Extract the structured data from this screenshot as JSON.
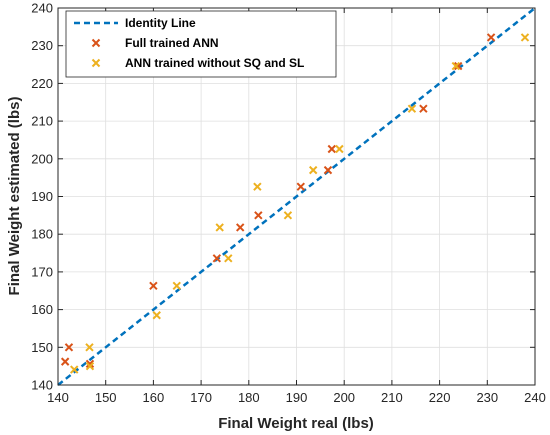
{
  "chart_data": {
    "type": "scatter",
    "xlabel": "Final Weight real (lbs)",
    "ylabel": "Final Weight estimated (lbs)",
    "xlim": [
      140,
      240
    ],
    "ylim": [
      140,
      240
    ],
    "xticks": [
      140,
      150,
      160,
      170,
      180,
      190,
      200,
      210,
      220,
      230,
      240
    ],
    "yticks": [
      140,
      150,
      160,
      170,
      180,
      190,
      200,
      210,
      220,
      230,
      240
    ],
    "grid": true,
    "legend_position": "top-left",
    "series": [
      {
        "name": "Identity Line",
        "kind": "line",
        "style": "dashed",
        "color": "#0072BD",
        "points": [
          [
            140,
            140
          ],
          [
            240,
            240
          ]
        ]
      },
      {
        "name": "Full trained ANN",
        "kind": "scatter",
        "marker": "x",
        "color": "#D95319",
        "points": [
          [
            141.5,
            146.2
          ],
          [
            142.3,
            150.0
          ],
          [
            146.7,
            145.6
          ],
          [
            160.0,
            166.3
          ],
          [
            173.3,
            173.6
          ],
          [
            178.2,
            181.8
          ],
          [
            182.0,
            185.0
          ],
          [
            190.9,
            192.6
          ],
          [
            196.6,
            197.0
          ],
          [
            197.4,
            202.6
          ],
          [
            216.6,
            213.3
          ],
          [
            223.9,
            224.6
          ],
          [
            230.8,
            232.2
          ]
        ]
      },
      {
        "name": "ANN trained without SQ and SL",
        "kind": "scatter",
        "marker": "x",
        "color": "#EDB120",
        "points": [
          [
            143.4,
            144.1
          ],
          [
            146.6,
            150.0
          ],
          [
            146.7,
            145.0
          ],
          [
            160.7,
            158.5
          ],
          [
            164.9,
            166.3
          ],
          [
            173.9,
            181.8
          ],
          [
            175.7,
            173.6
          ],
          [
            181.8,
            192.6
          ],
          [
            188.2,
            185.0
          ],
          [
            193.5,
            197.0
          ],
          [
            199.0,
            202.6
          ],
          [
            214.2,
            213.3
          ],
          [
            223.4,
            224.6
          ],
          [
            237.9,
            232.2
          ]
        ]
      }
    ]
  },
  "colors": {
    "identity": "#0072BD",
    "full": "#D95319",
    "partial": "#EDB120",
    "grid": "#DFDFDF",
    "axis": "#262626"
  }
}
